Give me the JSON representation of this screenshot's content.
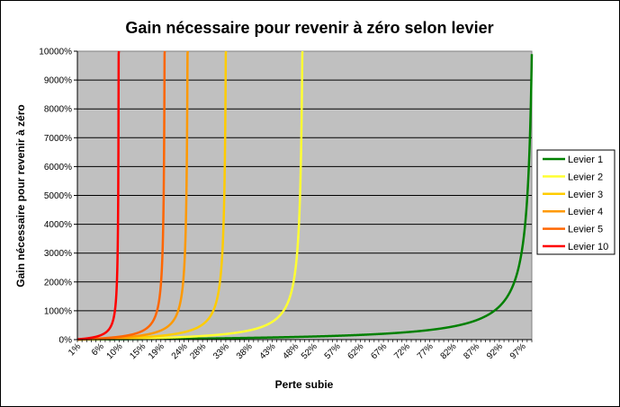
{
  "chart_data": {
    "type": "line",
    "title": "Gain nécessaire pour revenir à zéro selon levier",
    "xlabel": "Perte subie",
    "ylabel": "Gain nécessaire pour revenir à zéro",
    "x_tick_labels": [
      "1%",
      "6%",
      "10%",
      "15%",
      "19%",
      "24%",
      "28%",
      "33%",
      "38%",
      "43%",
      "48%",
      "52%",
      "57%",
      "62%",
      "67%",
      "72%",
      "77%",
      "82%",
      "87%",
      "92%",
      "97%"
    ],
    "x_range": [
      1,
      99
    ],
    "y_tick_labels": [
      "0%",
      "1000%",
      "2000%",
      "3000%",
      "4000%",
      "5000%",
      "6000%",
      "7000%",
      "8000%",
      "9000%",
      "10000%"
    ],
    "ylim": [
      0,
      10000
    ],
    "formula": "y = 100 * L * x / (100 - L * x), capped at 10000",
    "grid": "horizontal",
    "legend_position": "right",
    "series": [
      {
        "name": "Levier 1",
        "leverage": 1,
        "color": "#008000"
      },
      {
        "name": "Levier 2",
        "leverage": 2,
        "color": "#ffff33"
      },
      {
        "name": "Levier 3",
        "leverage": 3,
        "color": "#ffcc00"
      },
      {
        "name": "Levier 4",
        "leverage": 4,
        "color": "#ff9900"
      },
      {
        "name": "Levier 5",
        "leverage": 5,
        "color": "#ff6600"
      },
      {
        "name": "Levier 10",
        "leverage": 10,
        "color": "#ff0000"
      }
    ],
    "plot_background": "#c0c0c0"
  }
}
